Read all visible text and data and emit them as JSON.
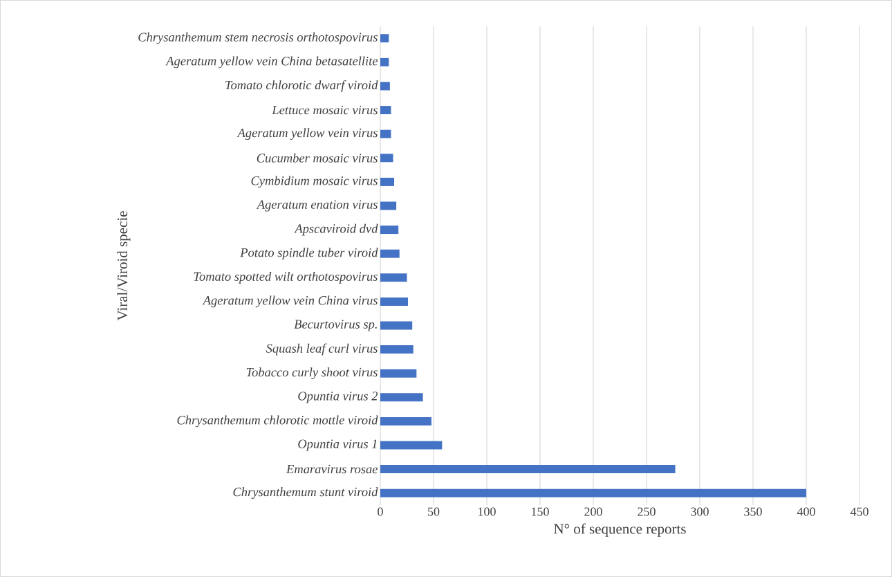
{
  "chart_data": {
    "type": "bar",
    "orientation": "horizontal",
    "xlabel": "N° of sequence reports",
    "ylabel": "Viral/Viroid specie",
    "categories": [
      "Chrysanthemum stem necrosis orthotospovirus",
      "Ageratum yellow vein China betasatellite",
      "Tomato chlorotic dwarf viroid",
      "Lettuce mosaic virus",
      "Ageratum yellow vein virus",
      "Cucumber mosaic virus",
      "Cymbidium mosaic virus",
      "Ageratum enation virus",
      "Apscaviroid dvd",
      "Potato spindle tuber viroid",
      "Tomato spotted wilt orthotospovirus",
      "Ageratum yellow vein China virus",
      "Becurtovirus sp.",
      "Squash leaf curl virus",
      "Tobacco curly shoot virus",
      "Opuntia virus 2",
      "Chrysanthemum chlorotic mottle viroid",
      "Opuntia virus 1",
      "Emaravirus rosae",
      "Chrysanthemum stunt viroid"
    ],
    "values": [
      8,
      8,
      9,
      10,
      10,
      12,
      13,
      15,
      17,
      18,
      25,
      26,
      30,
      31,
      34,
      40,
      48,
      58,
      277,
      400
    ],
    "color": "#4472c4",
    "xlim": [
      0,
      450
    ],
    "xticks": [
      0,
      50,
      100,
      150,
      200,
      250,
      300,
      350,
      400,
      450
    ],
    "grid": "x"
  }
}
